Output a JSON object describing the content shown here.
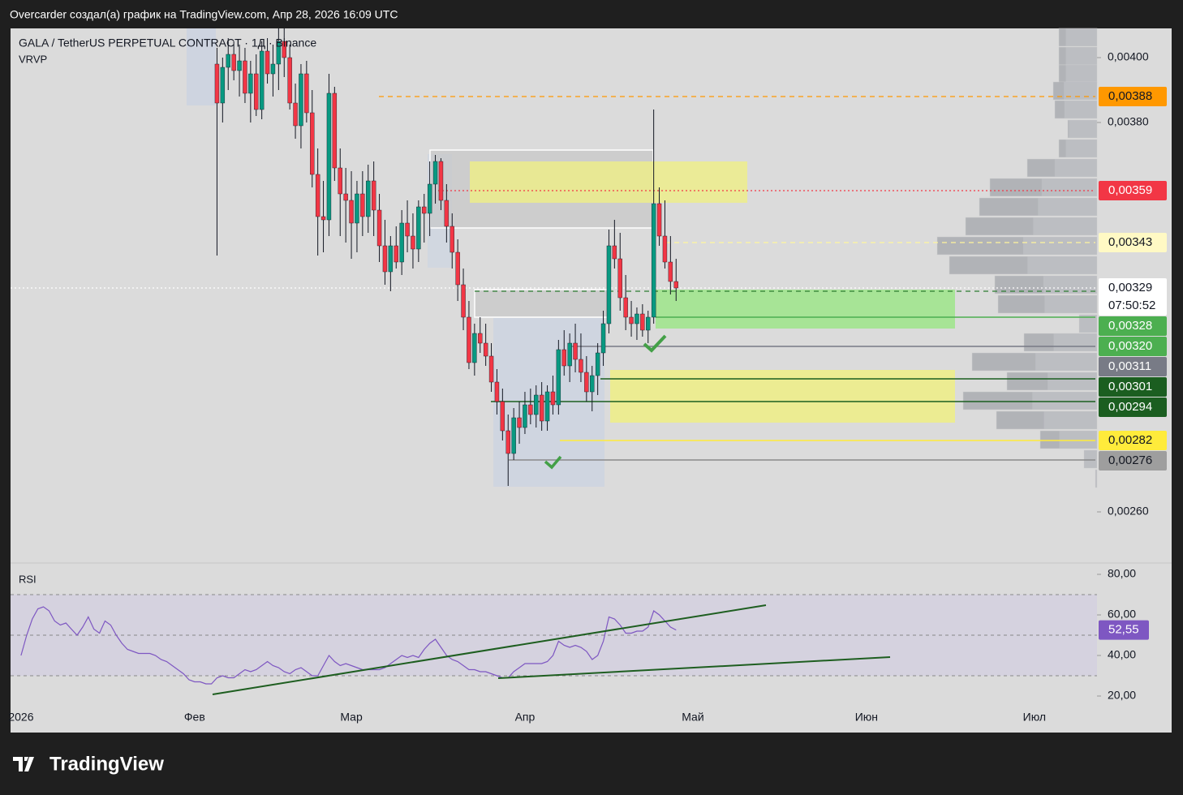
{
  "header": {
    "caption": "Overcarder создал(а) график на TradingView.com, Апр 28, 2026 16:09 UTC",
    "symbol": "GALA / TetherUS PERPETUAL CONTRACT · 1Д · Binance",
    "indicator": "VRVP",
    "rsi_title": "RSI",
    "logo": "TradingView",
    "countdown": "07:50:52"
  },
  "chart_data": [
    {
      "type": "candlestick",
      "categories": [
        "2026",
        null,
        null,
        null,
        null,
        null,
        null,
        null,
        null,
        null,
        null,
        null,
        null,
        null,
        null,
        null,
        null,
        null,
        null,
        null,
        null,
        null,
        null,
        null,
        null,
        null,
        null,
        null,
        null,
        null,
        null,
        "Фев",
        null,
        null,
        null,
        null,
        null,
        null,
        null,
        null,
        null,
        null,
        null,
        null,
        null,
        null,
        null,
        null,
        null,
        null,
        null,
        null,
        null,
        null,
        null,
        null,
        null,
        null,
        null,
        "Мар",
        null,
        null,
        null,
        null,
        null,
        null,
        null,
        null,
        null,
        null,
        null,
        null,
        null,
        null,
        null,
        null,
        null,
        null,
        null,
        null,
        null,
        null,
        null,
        null,
        null,
        null,
        null,
        null,
        null,
        null,
        "Апр",
        null,
        null,
        null,
        null,
        null,
        null,
        null,
        null,
        null,
        null,
        null,
        null,
        null,
        null,
        null,
        null,
        null,
        null,
        null,
        null,
        null,
        null,
        null,
        null,
        null,
        null,
        null,
        null,
        null,
        "Май",
        null,
        null,
        null,
        null,
        null,
        null,
        null,
        null,
        null,
        null,
        null,
        null,
        null,
        null,
        null,
        null,
        null,
        null,
        null,
        null,
        null,
        null,
        null,
        null,
        null,
        null,
        null,
        null,
        null,
        null,
        "Июн",
        null,
        null,
        null,
        null,
        null,
        null,
        null,
        null,
        null,
        null,
        null,
        null,
        null,
        null,
        null,
        null,
        null,
        null,
        null,
        null,
        null,
        null,
        null,
        null,
        null,
        null,
        null,
        null,
        null,
        "Июл",
        null,
        null,
        null,
        null,
        null,
        null,
        null,
        null,
        null,
        null,
        null
      ],
      "candles": [
        null,
        null,
        null,
        null,
        null,
        null,
        null,
        null,
        null,
        null,
        null,
        null,
        null,
        null,
        null,
        null,
        null,
        null,
        null,
        null,
        null,
        null,
        null,
        null,
        null,
        null,
        null,
        null,
        null,
        null,
        null,
        null,
        null,
        null,
        null,
        [
          0.00398,
          0.00403,
          0.00339,
          0.00386
        ],
        [
          0.00386,
          0.004,
          0.0038,
          0.00397
        ],
        [
          0.00397,
          0.00406,
          0.0039,
          0.00401
        ],
        [
          0.00401,
          0.00405,
          0.00393,
          0.00396
        ],
        [
          0.00396,
          0.00404,
          0.00388,
          0.00399
        ],
        [
          0.00399,
          0.00403,
          0.00386,
          0.00389
        ],
        [
          0.00389,
          0.00399,
          0.0038,
          0.00395
        ],
        [
          0.00395,
          0.00401,
          0.00382,
          0.00384
        ],
        [
          0.00384,
          0.00405,
          0.00381,
          0.00402
        ],
        [
          0.00402,
          0.00406,
          0.00392,
          0.00395
        ],
        [
          0.00395,
          0.00404,
          0.00388,
          0.00398
        ],
        [
          0.00398,
          0.00409,
          0.0039,
          0.00405
        ],
        [
          0.00405,
          0.00409,
          0.00394,
          0.004
        ],
        [
          0.004,
          0.00404,
          0.00384,
          0.00386
        ],
        [
          0.00386,
          0.00392,
          0.00375,
          0.00379
        ],
        [
          0.00379,
          0.00398,
          0.00372,
          0.00395
        ],
        [
          0.00395,
          0.00399,
          0.0038,
          0.00383
        ],
        [
          0.00383,
          0.0039,
          0.0036,
          0.00364
        ],
        [
          0.00364,
          0.00372,
          0.00339,
          0.00351
        ],
        [
          0.00351,
          0.00362,
          0.0034,
          0.0035
        ],
        [
          0.0035,
          0.00395,
          0.00345,
          0.00389
        ],
        [
          0.00389,
          0.00391,
          0.00362,
          0.00366
        ],
        [
          0.00366,
          0.00372,
          0.00345,
          0.00358
        ],
        [
          0.00358,
          0.00366,
          0.00343,
          0.00356
        ],
        [
          0.00356,
          0.00365,
          0.00338,
          0.00349
        ],
        [
          0.00349,
          0.00362,
          0.0034,
          0.00358
        ],
        [
          0.00358,
          0.00365,
          0.00345,
          0.00351
        ],
        [
          0.00351,
          0.00367,
          0.00346,
          0.00362
        ],
        [
          0.00362,
          0.00368,
          0.00345,
          0.00353
        ],
        [
          0.00353,
          0.00358,
          0.00337,
          0.00342
        ],
        [
          0.00342,
          0.0035,
          0.0033,
          0.00334
        ],
        [
          0.00334,
          0.00345,
          0.00328,
          0.00342
        ],
        [
          0.00342,
          0.00348,
          0.00335,
          0.00337
        ],
        [
          0.00337,
          0.00353,
          0.00333,
          0.00349
        ],
        [
          0.00349,
          0.00356,
          0.0034,
          0.00345
        ],
        [
          0.00345,
          0.00352,
          0.00335,
          0.00341
        ],
        [
          0.00341,
          0.00356,
          0.00337,
          0.00354
        ],
        [
          0.00354,
          0.00358,
          0.00343,
          0.00352
        ],
        [
          0.00352,
          0.00368,
          0.00345,
          0.00361
        ],
        [
          0.00361,
          0.0037,
          0.00355,
          0.00368
        ],
        [
          0.00368,
          0.00369,
          0.00353,
          0.00356
        ],
        [
          0.00356,
          0.00361,
          0.00343,
          0.00348
        ],
        [
          0.00348,
          0.00352,
          0.00335,
          0.0034
        ],
        [
          0.0034,
          0.00344,
          0.00325,
          0.0033
        ],
        [
          0.0033,
          0.00335,
          0.00316,
          0.0032
        ],
        [
          0.0032,
          0.00325,
          0.00304,
          0.00306
        ],
        [
          0.00306,
          0.00318,
          0.00302,
          0.00315
        ],
        [
          0.00315,
          0.0032,
          0.00309,
          0.00312
        ],
        [
          0.00312,
          0.00318,
          0.00305,
          0.00308
        ],
        [
          0.00308,
          0.00312,
          0.00297,
          0.003
        ],
        [
          0.003,
          0.00304,
          0.0029,
          0.00294
        ],
        [
          0.00294,
          0.00298,
          0.00282,
          0.00285
        ],
        [
          0.00285,
          0.0029,
          0.00268,
          0.00278
        ],
        [
          0.00278,
          0.00292,
          0.00276,
          0.00289
        ],
        [
          0.00289,
          0.00294,
          0.00281,
          0.00286
        ],
        [
          0.00286,
          0.00297,
          0.00284,
          0.00293
        ],
        [
          0.00293,
          0.00298,
          0.00287,
          0.0029
        ],
        [
          0.0029,
          0.00299,
          0.00286,
          0.00296
        ],
        [
          0.00296,
          0.003,
          0.00285,
          0.00288
        ],
        [
          0.00288,
          0.00299,
          0.00285,
          0.00297
        ],
        [
          0.00297,
          0.00302,
          0.0029,
          0.00293
        ],
        [
          0.00293,
          0.00313,
          0.0029,
          0.0031
        ],
        [
          0.0031,
          0.00316,
          0.00302,
          0.00305
        ],
        [
          0.00305,
          0.00315,
          0.003,
          0.00312
        ],
        [
          0.00312,
          0.00318,
          0.00303,
          0.00307
        ],
        [
          0.00307,
          0.00315,
          0.003,
          0.00303
        ],
        [
          0.00303,
          0.00308,
          0.00294,
          0.00297
        ],
        [
          0.00297,
          0.00305,
          0.00291,
          0.00302
        ],
        [
          0.00302,
          0.00312,
          0.00296,
          0.00309
        ],
        [
          0.00309,
          0.00322,
          0.00305,
          0.00318
        ],
        [
          0.00318,
          0.00347,
          0.00315,
          0.00342
        ],
        [
          0.00342,
          0.0035,
          0.00335,
          0.00338
        ],
        [
          0.00338,
          0.00346,
          0.00322,
          0.00326
        ],
        [
          0.00326,
          0.00333,
          0.00316,
          0.0032
        ],
        [
          0.0032,
          0.00325,
          0.00314,
          0.00318
        ],
        [
          0.00318,
          0.00323,
          0.00313,
          0.00321
        ],
        [
          0.00321,
          0.00324,
          0.00314,
          0.00316
        ],
        [
          0.00316,
          0.00322,
          0.00312,
          0.0032
        ],
        [
          0.0032,
          0.00384,
          0.00318,
          0.00355
        ],
        [
          0.00355,
          0.0036,
          0.00342,
          0.00345
        ],
        [
          0.00345,
          0.00356,
          0.00335,
          0.00337
        ],
        [
          0.00337,
          0.00345,
          0.00327,
          0.00331
        ],
        [
          0.00331,
          0.00338,
          0.00325,
          0.00329
        ],
        null,
        null,
        null,
        null,
        null,
        null,
        null,
        null,
        null,
        null,
        null,
        null,
        null,
        null,
        null,
        null,
        null,
        null,
        null,
        null,
        null,
        null,
        null,
        null,
        null,
        null,
        null,
        null,
        null,
        null,
        null,
        null,
        null,
        null,
        null,
        null,
        null,
        null,
        null,
        null,
        null,
        null,
        null,
        null,
        null,
        null,
        null,
        null,
        null,
        null,
        null,
        null,
        null,
        null,
        null,
        null,
        null,
        null,
        null,
        null,
        null,
        null,
        null,
        null,
        null,
        null,
        null,
        null,
        null,
        null,
        null,
        null,
        null,
        null,
        null
      ],
      "colors": {
        "up": "#089981",
        "down": "#f23645"
      },
      "ylim": [
        0.002445,
        0.00409
      ],
      "yticks": [
        {
          "value": 0.0026,
          "label": "0,00260"
        },
        {
          "value": 0.0038,
          "label": "0,00380"
        },
        {
          "value": 0.004,
          "label": "0,00400"
        }
      ],
      "levels": [
        {
          "value": 0.00388,
          "label": "0,00388",
          "color": "#ff9800",
          "text_color": "#131722",
          "line": "#ff9800",
          "style": "dashed"
        },
        {
          "value": 0.00359,
          "label": "0,00359",
          "color": "#f23645",
          "text_color": "#ffffff",
          "line": "#f23645",
          "style": "dotted"
        },
        {
          "value": 0.00343,
          "label": "0,00343",
          "color": "#fff9c4",
          "text_color": "#131722",
          "line": "#fff59d",
          "style": "dashed"
        },
        {
          "value": 0.00329,
          "label": "0,00329",
          "color": "#ffffff",
          "text_color": "#131722",
          "line": "#ffffff",
          "style": "dotted"
        },
        {
          "value": 0.00328,
          "label": "0,00328",
          "color": "#4caf50",
          "text_color": "#ffffff",
          "line": "#2e7d32",
          "style": "dashed"
        },
        {
          "value": 0.0032,
          "label": "0,00320",
          "color": "#4caf50",
          "text_color": "#ffffff",
          "line": "#4caf50",
          "style": "solid"
        },
        {
          "value": 0.00311,
          "label": "0,00311",
          "color": "#787b86",
          "text_color": "#ffffff",
          "line": "#787b86",
          "style": "solid"
        },
        {
          "value": 0.00301,
          "label": "0,00301",
          "color": "#1b5e20",
          "text_color": "#ffffff",
          "line": "#1b5e20",
          "style": "solid"
        },
        {
          "value": 0.00294,
          "label": "0,00294",
          "color": "#1b5e20",
          "text_color": "#ffffff",
          "line": "#1b5e20",
          "style": "solid"
        },
        {
          "value": 0.00282,
          "label": "0,00282",
          "color": "#ffeb3b",
          "text_color": "#131722",
          "line": "#ffeb3b",
          "style": "solid"
        },
        {
          "value": 0.00276,
          "label": "0,00276",
          "color": "#9e9e9e",
          "text_color": "#131722",
          "line": "#8a8a8a",
          "style": "solid"
        }
      ]
    },
    {
      "type": "line",
      "title": "RSI",
      "color": "#7e57c2",
      "values": [
        40,
        50,
        58,
        63,
        64,
        62,
        57,
        55,
        56,
        53,
        50,
        54,
        59,
        53,
        51,
        57,
        55,
        50,
        46,
        43,
        42,
        41,
        41,
        41,
        40,
        38,
        37,
        35,
        33,
        31,
        28,
        27,
        27,
        26,
        26,
        29,
        30,
        29,
        29,
        31,
        33,
        32,
        33,
        35,
        37,
        35,
        34,
        32,
        31,
        33,
        34,
        32,
        30,
        30,
        35,
        40,
        37,
        35,
        36,
        35,
        34,
        33,
        33,
        33,
        33,
        34,
        36,
        38,
        40,
        39,
        40,
        39,
        43,
        46,
        48,
        44,
        40,
        38,
        37,
        35,
        33,
        33,
        32,
        32,
        31,
        30,
        29,
        29,
        32,
        34,
        36,
        36,
        36,
        36,
        37,
        40,
        47,
        45,
        44,
        45,
        44,
        42,
        38,
        40,
        47,
        59,
        58,
        55,
        51,
        51,
        52,
        52,
        54,
        62,
        60,
        57,
        54,
        52.55,
        null,
        null,
        null,
        null,
        null,
        null,
        null,
        null,
        null,
        null,
        null,
        null,
        null,
        null,
        null,
        null,
        null,
        null,
        null,
        null,
        null,
        null,
        null,
        null,
        null,
        null,
        null,
        null,
        null,
        null,
        null,
        null,
        null,
        null,
        null,
        null,
        null,
        null,
        null,
        null,
        null,
        null,
        null,
        null,
        null,
        null,
        null,
        null,
        null,
        null,
        null,
        null,
        null,
        null,
        null,
        null,
        null,
        null,
        null,
        null,
        null,
        null,
        null,
        null,
        null,
        null,
        null,
        null,
        null,
        null,
        null,
        null,
        null,
        null,
        null
      ],
      "last_value_label": "52,55",
      "ylim": [
        15.2,
        85.2
      ],
      "yticks": [
        {
          "value": 20,
          "label": "20,00"
        },
        {
          "value": 40,
          "label": "40,00"
        },
        {
          "value": 60,
          "label": "60,00"
        },
        {
          "value": 80,
          "label": "80,00"
        }
      ],
      "bands": [
        30,
        50,
        70
      ],
      "band_color": "#d3cfe0"
    }
  ]
}
